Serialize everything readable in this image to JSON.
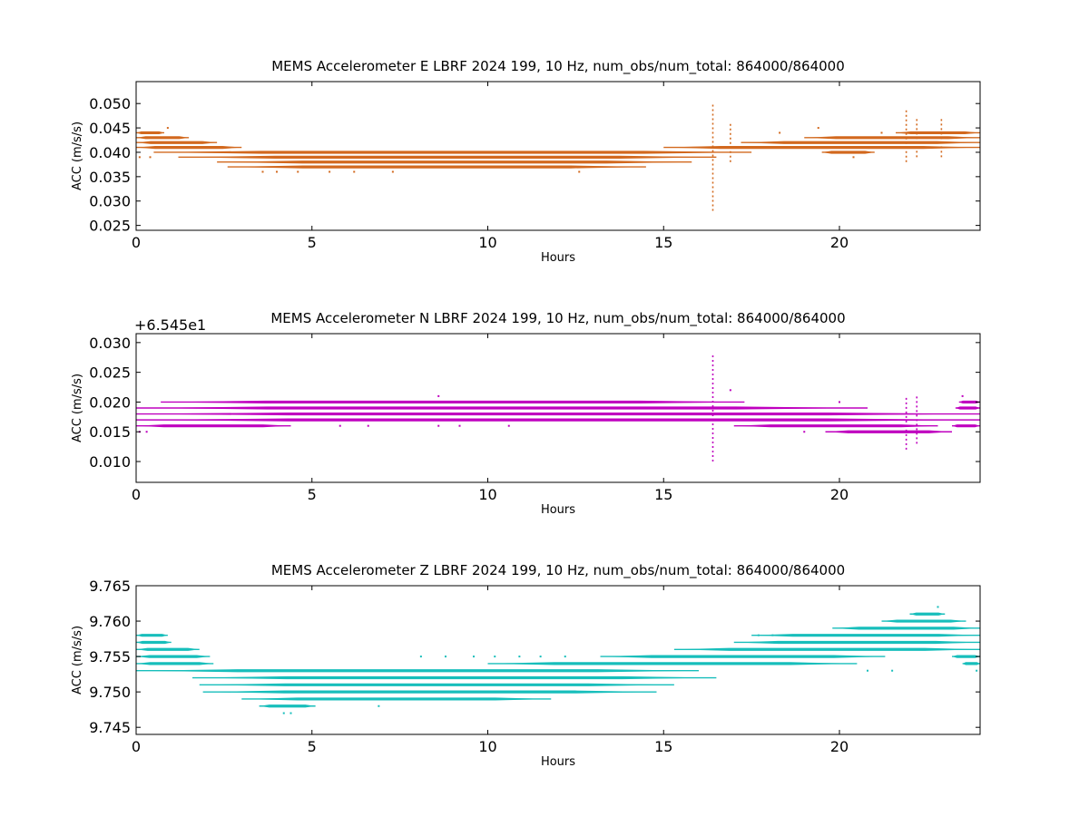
{
  "chart_data": [
    {
      "type": "scatter",
      "title": "MEMS Accelerometer E LBRF 2024 199, 10 Hz, num_obs/num_total: 864000/864000",
      "xlabel": "Hours",
      "ylabel": "ACC (m/s/s)",
      "offset_text": "",
      "xlim": [
        0,
        24
      ],
      "ylim": [
        0.024,
        0.0545
      ],
      "xticks": [
        0,
        5,
        10,
        15,
        20
      ],
      "xtick_labels": [
        "0",
        "5",
        "10",
        "15",
        "20"
      ],
      "yticks": [
        0.025,
        0.03,
        0.035,
        0.04,
        0.045,
        0.05
      ],
      "ytick_labels": [
        "0.025",
        "0.030",
        "0.035",
        "0.040",
        "0.045",
        "0.050"
      ],
      "color": "#d2691e",
      "series": [
        {
          "bands": [
            {
              "y": 0.044,
              "x": [
                [
                  0,
                  0.8
                ],
                [
                  21.6,
                  24
                ]
              ]
            },
            {
              "y": 0.043,
              "x": [
                [
                  0,
                  1.5
                ],
                [
                  19.0,
                  24
                ]
              ]
            },
            {
              "y": 0.042,
              "x": [
                [
                  0,
                  2.3
                ],
                [
                  17.2,
                  24
                ]
              ]
            },
            {
              "y": 0.041,
              "x": [
                [
                  0,
                  3.0
                ],
                [
                  15.0,
                  24
                ]
              ]
            },
            {
              "y": 0.04,
              "x": [
                [
                  0.5,
                  17.5
                ],
                [
                  19.5,
                  21.0
                ]
              ]
            },
            {
              "y": 0.039,
              "x": [
                [
                  1.2,
                  16.5
                ]
              ]
            },
            {
              "y": 0.038,
              "x": [
                [
                  2.3,
                  15.8
                ]
              ]
            },
            {
              "y": 0.037,
              "x": [
                [
                  2.6,
                  14.5
                ]
              ]
            }
          ]
        }
      ],
      "spikes": [
        {
          "x": 16.4,
          "y": [
            0.028,
            0.05
          ]
        },
        {
          "x": 16.9,
          "y": [
            0.038,
            0.046
          ]
        },
        {
          "x": 21.9,
          "y": [
            0.038,
            0.049
          ]
        },
        {
          "x": 22.2,
          "y": [
            0.039,
            0.047
          ]
        },
        {
          "x": 22.9,
          "y": [
            0.039,
            0.047
          ]
        }
      ],
      "scatter": [
        [
          0.1,
          0.039
        ],
        [
          0.4,
          0.039
        ],
        [
          0.9,
          0.045
        ],
        [
          3.6,
          0.036
        ],
        [
          4.0,
          0.036
        ],
        [
          4.6,
          0.036
        ],
        [
          5.5,
          0.036
        ],
        [
          6.2,
          0.036
        ],
        [
          7.3,
          0.036
        ],
        [
          8.7,
          0.04
        ],
        [
          10.4,
          0.04
        ],
        [
          12.6,
          0.036
        ],
        [
          13.6,
          0.04
        ],
        [
          17.5,
          0.041
        ],
        [
          18.3,
          0.044
        ],
        [
          19.4,
          0.045
        ],
        [
          20.4,
          0.039
        ],
        [
          21.2,
          0.044
        ]
      ]
    },
    {
      "type": "scatter",
      "title": "MEMS Accelerometer N LBRF 2024 199, 10 Hz, num_obs/num_total: 864000/864000",
      "xlabel": "Hours",
      "ylabel": "ACC (m/s/s)",
      "offset_text": "+6.545e1",
      "xlim": [
        0,
        24
      ],
      "ylim": [
        0.0065,
        0.0315
      ],
      "xticks": [
        0,
        5,
        10,
        15,
        20
      ],
      "xtick_labels": [
        "0",
        "5",
        "10",
        "15",
        "20"
      ],
      "yticks": [
        0.01,
        0.015,
        0.02,
        0.025,
        0.03
      ],
      "ytick_labels": [
        "0.010",
        "0.015",
        "0.020",
        "0.025",
        "0.030"
      ],
      "color": "#bf00bf",
      "series": [
        {
          "bands": [
            {
              "y": 0.02,
              "x": [
                [
                  0.7,
                  17.3
                ],
                [
                  23.4,
                  24
                ]
              ]
            },
            {
              "y": 0.019,
              "x": [
                [
                  0,
                  20.8
                ],
                [
                  23.3,
                  24
                ]
              ]
            },
            {
              "y": 0.018,
              "x": [
                [
                  0,
                  24
                ]
              ]
            },
            {
              "y": 0.017,
              "x": [
                [
                  0,
                  24
                ]
              ]
            },
            {
              "y": 0.016,
              "x": [
                [
                  0,
                  4.4
                ],
                [
                  17.0,
                  22.8
                ],
                [
                  23.2,
                  24
                ]
              ]
            },
            {
              "y": 0.015,
              "x": [
                [
                  19.6,
                  23.2
                ]
              ]
            }
          ]
        }
      ],
      "spikes": [
        {
          "x": 16.4,
          "y": [
            0.01,
            0.028
          ]
        },
        {
          "x": 21.9,
          "y": [
            0.012,
            0.021
          ]
        },
        {
          "x": 22.2,
          "y": [
            0.013,
            0.021
          ]
        }
      ],
      "scatter": [
        [
          0.1,
          0.015
        ],
        [
          0.3,
          0.015
        ],
        [
          5.8,
          0.016
        ],
        [
          6.6,
          0.016
        ],
        [
          8.6,
          0.021
        ],
        [
          8.6,
          0.016
        ],
        [
          9.2,
          0.016
        ],
        [
          10.6,
          0.016
        ],
        [
          16.9,
          0.022
        ],
        [
          18.4,
          0.016
        ],
        [
          19.0,
          0.015
        ],
        [
          20.0,
          0.02
        ],
        [
          23.5,
          0.021
        ]
      ]
    },
    {
      "type": "scatter",
      "title": "MEMS Accelerometer Z LBRF 2024 199, 10 Hz, num_obs/num_total: 864000/864000",
      "xlabel": "Hours",
      "ylabel": "ACC (m/s/s)",
      "offset_text": "",
      "xlim": [
        0,
        24
      ],
      "ylim": [
        9.744,
        9.765
      ],
      "xticks": [
        0,
        5,
        10,
        15,
        20
      ],
      "xtick_labels": [
        "0",
        "5",
        "10",
        "15",
        "20"
      ],
      "yticks": [
        9.745,
        9.75,
        9.755,
        9.76,
        9.765
      ],
      "ytick_labels": [
        "9.745",
        "9.750",
        "9.755",
        "9.760",
        "9.765"
      ],
      "color": "#17bebb",
      "series": [
        {
          "bands": [
            {
              "y": 9.761,
              "x": [
                [
                  22.0,
                  23.0
                ]
              ]
            },
            {
              "y": 9.76,
              "x": [
                [
                  21.2,
                  23.6
                ]
              ]
            },
            {
              "y": 9.759,
              "x": [
                [
                  19.8,
                  24
                ]
              ]
            },
            {
              "y": 9.758,
              "x": [
                [
                  0,
                  0.9
                ],
                [
                  17.5,
                  24
                ]
              ]
            },
            {
              "y": 9.757,
              "x": [
                [
                  0,
                  1.0
                ],
                [
                  17.0,
                  24
                ]
              ]
            },
            {
              "y": 9.756,
              "x": [
                [
                  0,
                  1.8
                ],
                [
                  15.3,
                  24
                ]
              ]
            },
            {
              "y": 9.755,
              "x": [
                [
                  0,
                  2.1
                ],
                [
                  13.2,
                  21.3
                ],
                [
                  23.2,
                  24
                ]
              ]
            },
            {
              "y": 9.754,
              "x": [
                [
                  0,
                  2.2
                ],
                [
                  10.0,
                  20.5
                ],
                [
                  23.5,
                  24
                ]
              ]
            },
            {
              "y": 9.753,
              "x": [
                [
                  0,
                  16.0
                ]
              ]
            },
            {
              "y": 9.752,
              "x": [
                [
                  1.6,
                  16.5
                ]
              ]
            },
            {
              "y": 9.751,
              "x": [
                [
                  1.8,
                  15.3
                ]
              ]
            },
            {
              "y": 9.75,
              "x": [
                [
                  1.9,
                  14.8
                ]
              ]
            },
            {
              "y": 9.749,
              "x": [
                [
                  3.0,
                  11.8
                ]
              ]
            },
            {
              "y": 9.748,
              "x": [
                [
                  3.5,
                  5.1
                ]
              ]
            }
          ]
        }
      ],
      "spikes": [],
      "scatter": [
        [
          4.2,
          9.747
        ],
        [
          4.4,
          9.747
        ],
        [
          6.9,
          9.748
        ],
        [
          8.1,
          9.755
        ],
        [
          8.8,
          9.755
        ],
        [
          9.6,
          9.755
        ],
        [
          10.2,
          9.755
        ],
        [
          10.9,
          9.755
        ],
        [
          11.5,
          9.755
        ],
        [
          12.2,
          9.755
        ],
        [
          17.7,
          9.758
        ],
        [
          18.1,
          9.758
        ],
        [
          20.8,
          9.753
        ],
        [
          21.5,
          9.753
        ],
        [
          22.8,
          9.762
        ],
        [
          23.9,
          9.753
        ]
      ]
    }
  ]
}
